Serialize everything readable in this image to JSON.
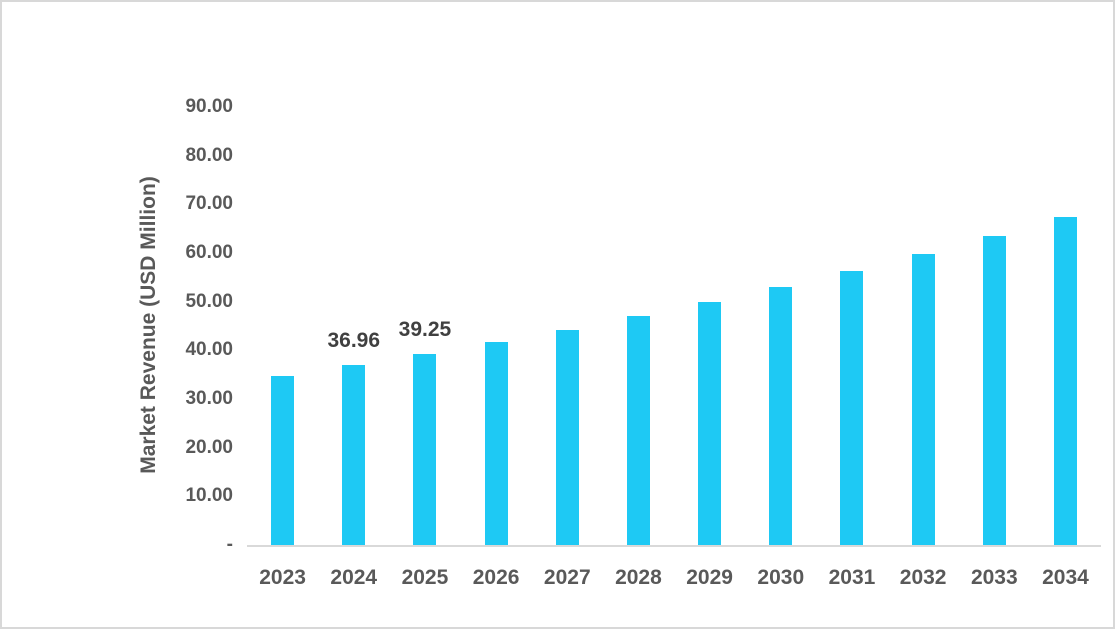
{
  "chart_data": {
    "type": "bar",
    "title": "",
    "ylabel": "Market Revenue (USD Million)",
    "xlabel": "",
    "categories": [
      "2023",
      "2024",
      "2025",
      "2026",
      "2027",
      "2028",
      "2029",
      "2030",
      "2031",
      "2032",
      "2033",
      "2034"
    ],
    "values": [
      34.8,
      36.96,
      39.25,
      41.68,
      44.26,
      47.01,
      49.92,
      53.01,
      56.3,
      59.79,
      63.49,
      67.43
    ],
    "data_labels": [
      "",
      "36.96",
      "39.25",
      "",
      "",
      "",
      "",
      "",
      "",
      "",
      "",
      ""
    ],
    "ylim": [
      0,
      90
    ],
    "ytick_labels": [
      "90.00",
      "80.00",
      "70.00",
      "60.00",
      "50.00",
      "40.00",
      "30.00",
      "20.00",
      "10.00",
      "-"
    ],
    "grid": false,
    "legend": false,
    "bar_color": "#1ec9f4",
    "axis_text_color": "#595959",
    "data_label_color": "#404040",
    "axis_line_color": "#d9d9d9"
  }
}
